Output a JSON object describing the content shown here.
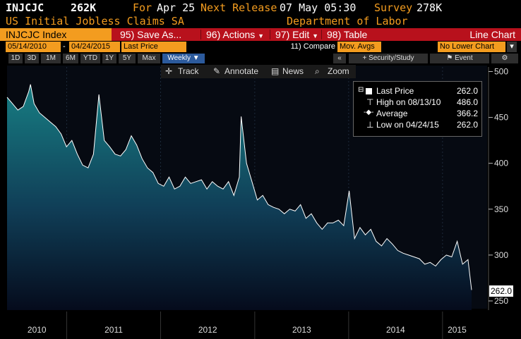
{
  "header": {
    "ticker": "INJCJC",
    "last_value": "262K",
    "for_label": "For",
    "for_date": "Apr 25",
    "next_release_label": "Next Release",
    "next_release_value": "07 May 05:30",
    "survey_label": "Survey",
    "survey_value": "278K",
    "series_title": "US Initial Jobless Claims SA",
    "source": "Department of Labor"
  },
  "toolbar": {
    "security": "INJCJC Index",
    "save_as": "95) Save As...",
    "actions": "96) Actions",
    "edit": "97) Edit",
    "table": "98) Table",
    "chart_type": "Line Chart"
  },
  "range": {
    "start": "05/14/2010",
    "dash": "-",
    "end": "04/24/2015",
    "field": "Last Price",
    "compare": "11) Compare",
    "mov_avgs": "Mov. Avgs",
    "lower_chart": "No Lower Chart"
  },
  "periods": {
    "buttons": [
      "1D",
      "3D",
      "1M",
      "6M",
      "YTD",
      "1Y",
      "5Y",
      "Max"
    ],
    "frequency": "Weekly",
    "collapse": "«",
    "security_study": "Security/Study",
    "event": "Event",
    "settings_icon": "gear-icon"
  },
  "chart_tools": {
    "track": "Track",
    "annotate": "Annotate",
    "news": "News",
    "zoom": "Zoom"
  },
  "legend": {
    "last_price_label": "Last Price",
    "last_price_value": "262.0",
    "high_label": "High on 08/13/10",
    "high_value": "486.0",
    "average_label": "Average",
    "average_value": "366.2",
    "low_label": "Low on 04/24/15",
    "low_value": "262.0"
  },
  "last_badge": "262.0",
  "colors": {
    "bloomberg_orange": "#f39c1f",
    "menu_red": "#b8111c",
    "area_top": "#177e83",
    "area_bottom": "#050b1c",
    "line": "#ffffff"
  },
  "chart_data": {
    "type": "area",
    "title": "",
    "xlabel": "",
    "ylabel": "",
    "frequency": "weekly",
    "x_range": [
      "2010-05-14",
      "2015-04-24"
    ],
    "ylim": [
      240,
      505
    ],
    "y_ticks": [
      250,
      300,
      350,
      400,
      450,
      500
    ],
    "x_tick_labels": [
      "2010",
      "2011",
      "2012",
      "2013",
      "2014",
      "2015"
    ],
    "grid": false,
    "legend_position": "top-right",
    "series": [
      {
        "name": "Last Price",
        "x": [
          "2010-05-14",
          "2010-06-04",
          "2010-06-25",
          "2010-07-16",
          "2010-08-06",
          "2010-08-13",
          "2010-08-27",
          "2010-09-17",
          "2010-10-08",
          "2010-10-29",
          "2010-11-19",
          "2010-12-10",
          "2010-12-31",
          "2011-01-21",
          "2011-02-11",
          "2011-03-04",
          "2011-03-25",
          "2011-04-15",
          "2011-05-06",
          "2011-05-27",
          "2011-06-17",
          "2011-07-08",
          "2011-07-29",
          "2011-08-19",
          "2011-09-09",
          "2011-09-30",
          "2011-10-21",
          "2011-11-11",
          "2011-12-02",
          "2011-12-23",
          "2012-01-13",
          "2012-02-03",
          "2012-02-24",
          "2012-03-16",
          "2012-04-06",
          "2012-04-27",
          "2012-05-18",
          "2012-06-08",
          "2012-06-29",
          "2012-07-20",
          "2012-08-10",
          "2012-08-31",
          "2012-09-21",
          "2012-10-12",
          "2012-11-02",
          "2012-11-09",
          "2012-11-30",
          "2012-12-21",
          "2013-01-11",
          "2013-02-01",
          "2013-02-22",
          "2013-03-15",
          "2013-04-05",
          "2013-04-26",
          "2013-05-17",
          "2013-06-07",
          "2013-06-28",
          "2013-07-19",
          "2013-08-09",
          "2013-08-30",
          "2013-09-20",
          "2013-10-11",
          "2013-11-01",
          "2013-11-22",
          "2013-12-13",
          "2014-01-03",
          "2014-01-24",
          "2014-02-14",
          "2014-03-07",
          "2014-03-28",
          "2014-04-18",
          "2014-05-09",
          "2014-05-30",
          "2014-06-20",
          "2014-07-11",
          "2014-08-01",
          "2014-08-22",
          "2014-09-12",
          "2014-10-03",
          "2014-10-24",
          "2014-11-14",
          "2014-12-05",
          "2014-12-26",
          "2015-01-16",
          "2015-02-06",
          "2015-02-27",
          "2015-03-20",
          "2015-04-10",
          "2015-04-24"
        ],
        "values": [
          472,
          465,
          458,
          462,
          478,
          486,
          465,
          455,
          450,
          445,
          440,
          432,
          418,
          425,
          410,
          398,
          395,
          410,
          475,
          425,
          418,
          410,
          408,
          415,
          430,
          420,
          405,
          395,
          390,
          378,
          375,
          385,
          372,
          375,
          385,
          378,
          380,
          382,
          372,
          380,
          375,
          372,
          380,
          365,
          385,
          451,
          400,
          380,
          360,
          365,
          355,
          352,
          350,
          345,
          350,
          348,
          355,
          340,
          345,
          335,
          328,
          335,
          335,
          338,
          332,
          370,
          318,
          330,
          322,
          328,
          315,
          310,
          318,
          312,
          305,
          302,
          300,
          298,
          296,
          290,
          292,
          288,
          295,
          300,
          298,
          315,
          290,
          295,
          262
        ]
      }
    ]
  }
}
